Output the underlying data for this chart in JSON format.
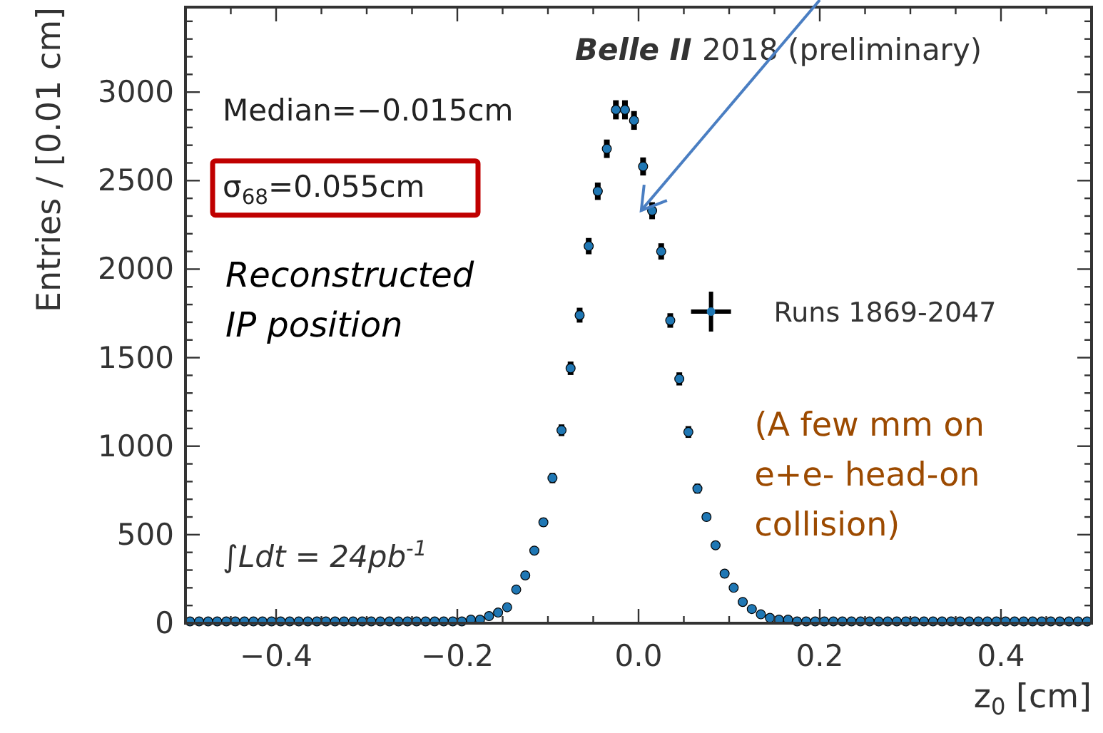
{
  "chart_data": {
    "type": "scatter",
    "xlabel": "z$_{0}$ [cm]",
    "ylabel": "Entries / [0.01 cm]",
    "x": [
      -0.495,
      -0.485,
      -0.475,
      -0.465,
      -0.455,
      -0.445,
      -0.435,
      -0.425,
      -0.415,
      -0.405,
      -0.395,
      -0.385,
      -0.375,
      -0.365,
      -0.355,
      -0.345,
      -0.335,
      -0.325,
      -0.315,
      -0.305,
      -0.295,
      -0.285,
      -0.275,
      -0.265,
      -0.255,
      -0.245,
      -0.235,
      -0.225,
      -0.215,
      -0.205,
      -0.195,
      -0.185,
      -0.175,
      -0.165,
      -0.155,
      -0.145,
      -0.135,
      -0.125,
      -0.115,
      -0.105,
      -0.095,
      -0.085,
      -0.075,
      -0.065,
      -0.055,
      -0.045,
      -0.035,
      -0.025,
      -0.015,
      -0.005,
      0.005,
      0.015,
      0.025,
      0.035,
      0.045,
      0.055,
      0.065,
      0.075,
      0.085,
      0.095,
      0.105,
      0.115,
      0.125,
      0.135,
      0.145,
      0.155,
      0.165,
      0.175,
      0.185,
      0.195,
      0.205,
      0.215,
      0.225,
      0.235,
      0.245,
      0.255,
      0.265,
      0.275,
      0.285,
      0.295,
      0.305,
      0.315,
      0.325,
      0.335,
      0.345,
      0.355,
      0.365,
      0.375,
      0.385,
      0.395,
      0.405,
      0.415,
      0.425,
      0.435,
      0.445,
      0.455,
      0.465,
      0.475,
      0.485,
      0.495
    ],
    "series": [
      {
        "name": "Runs 1869-2047",
        "color": "#1f77b4",
        "values": [
          10,
          10,
          10,
          10,
          10,
          10,
          10,
          10,
          10,
          10,
          10,
          10,
          10,
          10,
          10,
          10,
          10,
          10,
          10,
          10,
          10,
          10,
          10,
          10,
          10,
          10,
          10,
          10,
          10,
          10,
          10,
          20,
          20,
          40,
          60,
          90,
          190,
          270,
          410,
          570,
          820,
          1090,
          1440,
          1740,
          2130,
          2440,
          2680,
          2900,
          2900,
          2840,
          2580,
          2330,
          2100,
          1710,
          1380,
          1080,
          760,
          600,
          440,
          280,
          200,
          120,
          80,
          50,
          30,
          20,
          20,
          10,
          10,
          10,
          10,
          10,
          10,
          10,
          10,
          10,
          10,
          10,
          10,
          10,
          10,
          10,
          10,
          10,
          10,
          10,
          10,
          10,
          10,
          10,
          10,
          10,
          10,
          10,
          10,
          10,
          10,
          10,
          10,
          10
        ],
        "errors": [
          null,
          null,
          null,
          null,
          null,
          null,
          null,
          null,
          null,
          null,
          null,
          null,
          null,
          null,
          null,
          null,
          null,
          null,
          null,
          null,
          null,
          null,
          null,
          null,
          null,
          null,
          null,
          null,
          null,
          null,
          null,
          null,
          null,
          null,
          null,
          null,
          null,
          null,
          20,
          24,
          29,
          33,
          38,
          42,
          46,
          49,
          52,
          54,
          54,
          53,
          51,
          48,
          46,
          41,
          37,
          33,
          28,
          24,
          21,
          null,
          null,
          null,
          null,
          null,
          null,
          null,
          null,
          null,
          null,
          null,
          null,
          null,
          null,
          null,
          null,
          null,
          null,
          null,
          null,
          null,
          null,
          null,
          null,
          null,
          null,
          null,
          null,
          null,
          null,
          null,
          null,
          null,
          null,
          null,
          null,
          null,
          null,
          null,
          null,
          null
        ]
      }
    ],
    "xlim": [
      -0.5,
      0.5
    ],
    "xticks": [
      {
        "value": -0.5,
        "label": null
      },
      {
        "value": -0.45,
        "label": null
      },
      -0.4,
      {
        "value": -0.35,
        "label": null
      },
      {
        "value": -0.3,
        "label": null
      },
      {
        "value": -0.25,
        "label": null
      },
      -0.2,
      {
        "value": -0.15,
        "label": null
      },
      {
        "value": -0.1,
        "label": null
      },
      {
        "value": -0.05,
        "label": null
      },
      {
        "value": 0,
        "label": "0.0"
      },
      {
        "value": 0.05,
        "label": null
      },
      {
        "value": 0.1,
        "label": null
      },
      {
        "value": 0.15,
        "label": null
      },
      0.2,
      {
        "value": 0.25,
        "label": null
      },
      {
        "value": 0.3,
        "label": null
      },
      {
        "value": 0.35,
        "label": null
      },
      0.4,
      {
        "value": 0.45,
        "label": null
      }
    ],
    "ylim": [
      0,
      3480
    ],
    "yticks": [
      0,
      {
        "value": 100,
        "label": null
      },
      {
        "value": 200,
        "label": null
      },
      {
        "value": 300,
        "label": null
      },
      {
        "value": 400,
        "label": null
      },
      500,
      {
        "value": 600,
        "label": null
      },
      {
        "value": 700,
        "label": null
      },
      {
        "value": 800,
        "label": null
      },
      {
        "value": 900,
        "label": null
      },
      1000,
      {
        "value": 1100,
        "label": null
      },
      {
        "value": 1200,
        "label": null
      },
      {
        "value": 1300,
        "label": null
      },
      {
        "value": 1400,
        "label": null
      },
      1500,
      {
        "value": 1600,
        "label": null
      },
      {
        "value": 1700,
        "label": null
      },
      {
        "value": 1800,
        "label": null
      },
      {
        "value": 1900,
        "label": null
      },
      2000,
      {
        "value": 2100,
        "label": null
      },
      {
        "value": 2200,
        "label": null
      },
      {
        "value": 2300,
        "label": null
      },
      {
        "value": 2400,
        "label": null
      },
      2500,
      {
        "value": 2600,
        "label": null
      },
      {
        "value": 2700,
        "label": null
      },
      {
        "value": 2800,
        "label": null
      },
      {
        "value": 2900,
        "label": null
      },
      3000,
      {
        "value": 3100,
        "label": null
      },
      {
        "value": 3200,
        "label": null
      },
      {
        "value": 3300,
        "label": null
      },
      {
        "value": 3400,
        "label": null
      }
    ],
    "marker": "circle",
    "grid": false,
    "legend": "right",
    "annotations": [
      "Belle II",
      "2018 (preliminary)",
      "Median=−0.015cm",
      "σ$_{68}$=0.055cm",
      "Reconstructed\nIP position",
      "∫Ldt = 24pb$^{-1}$",
      "(A few mm on\ne+e- head-on\ncollision)"
    ]
  }
}
